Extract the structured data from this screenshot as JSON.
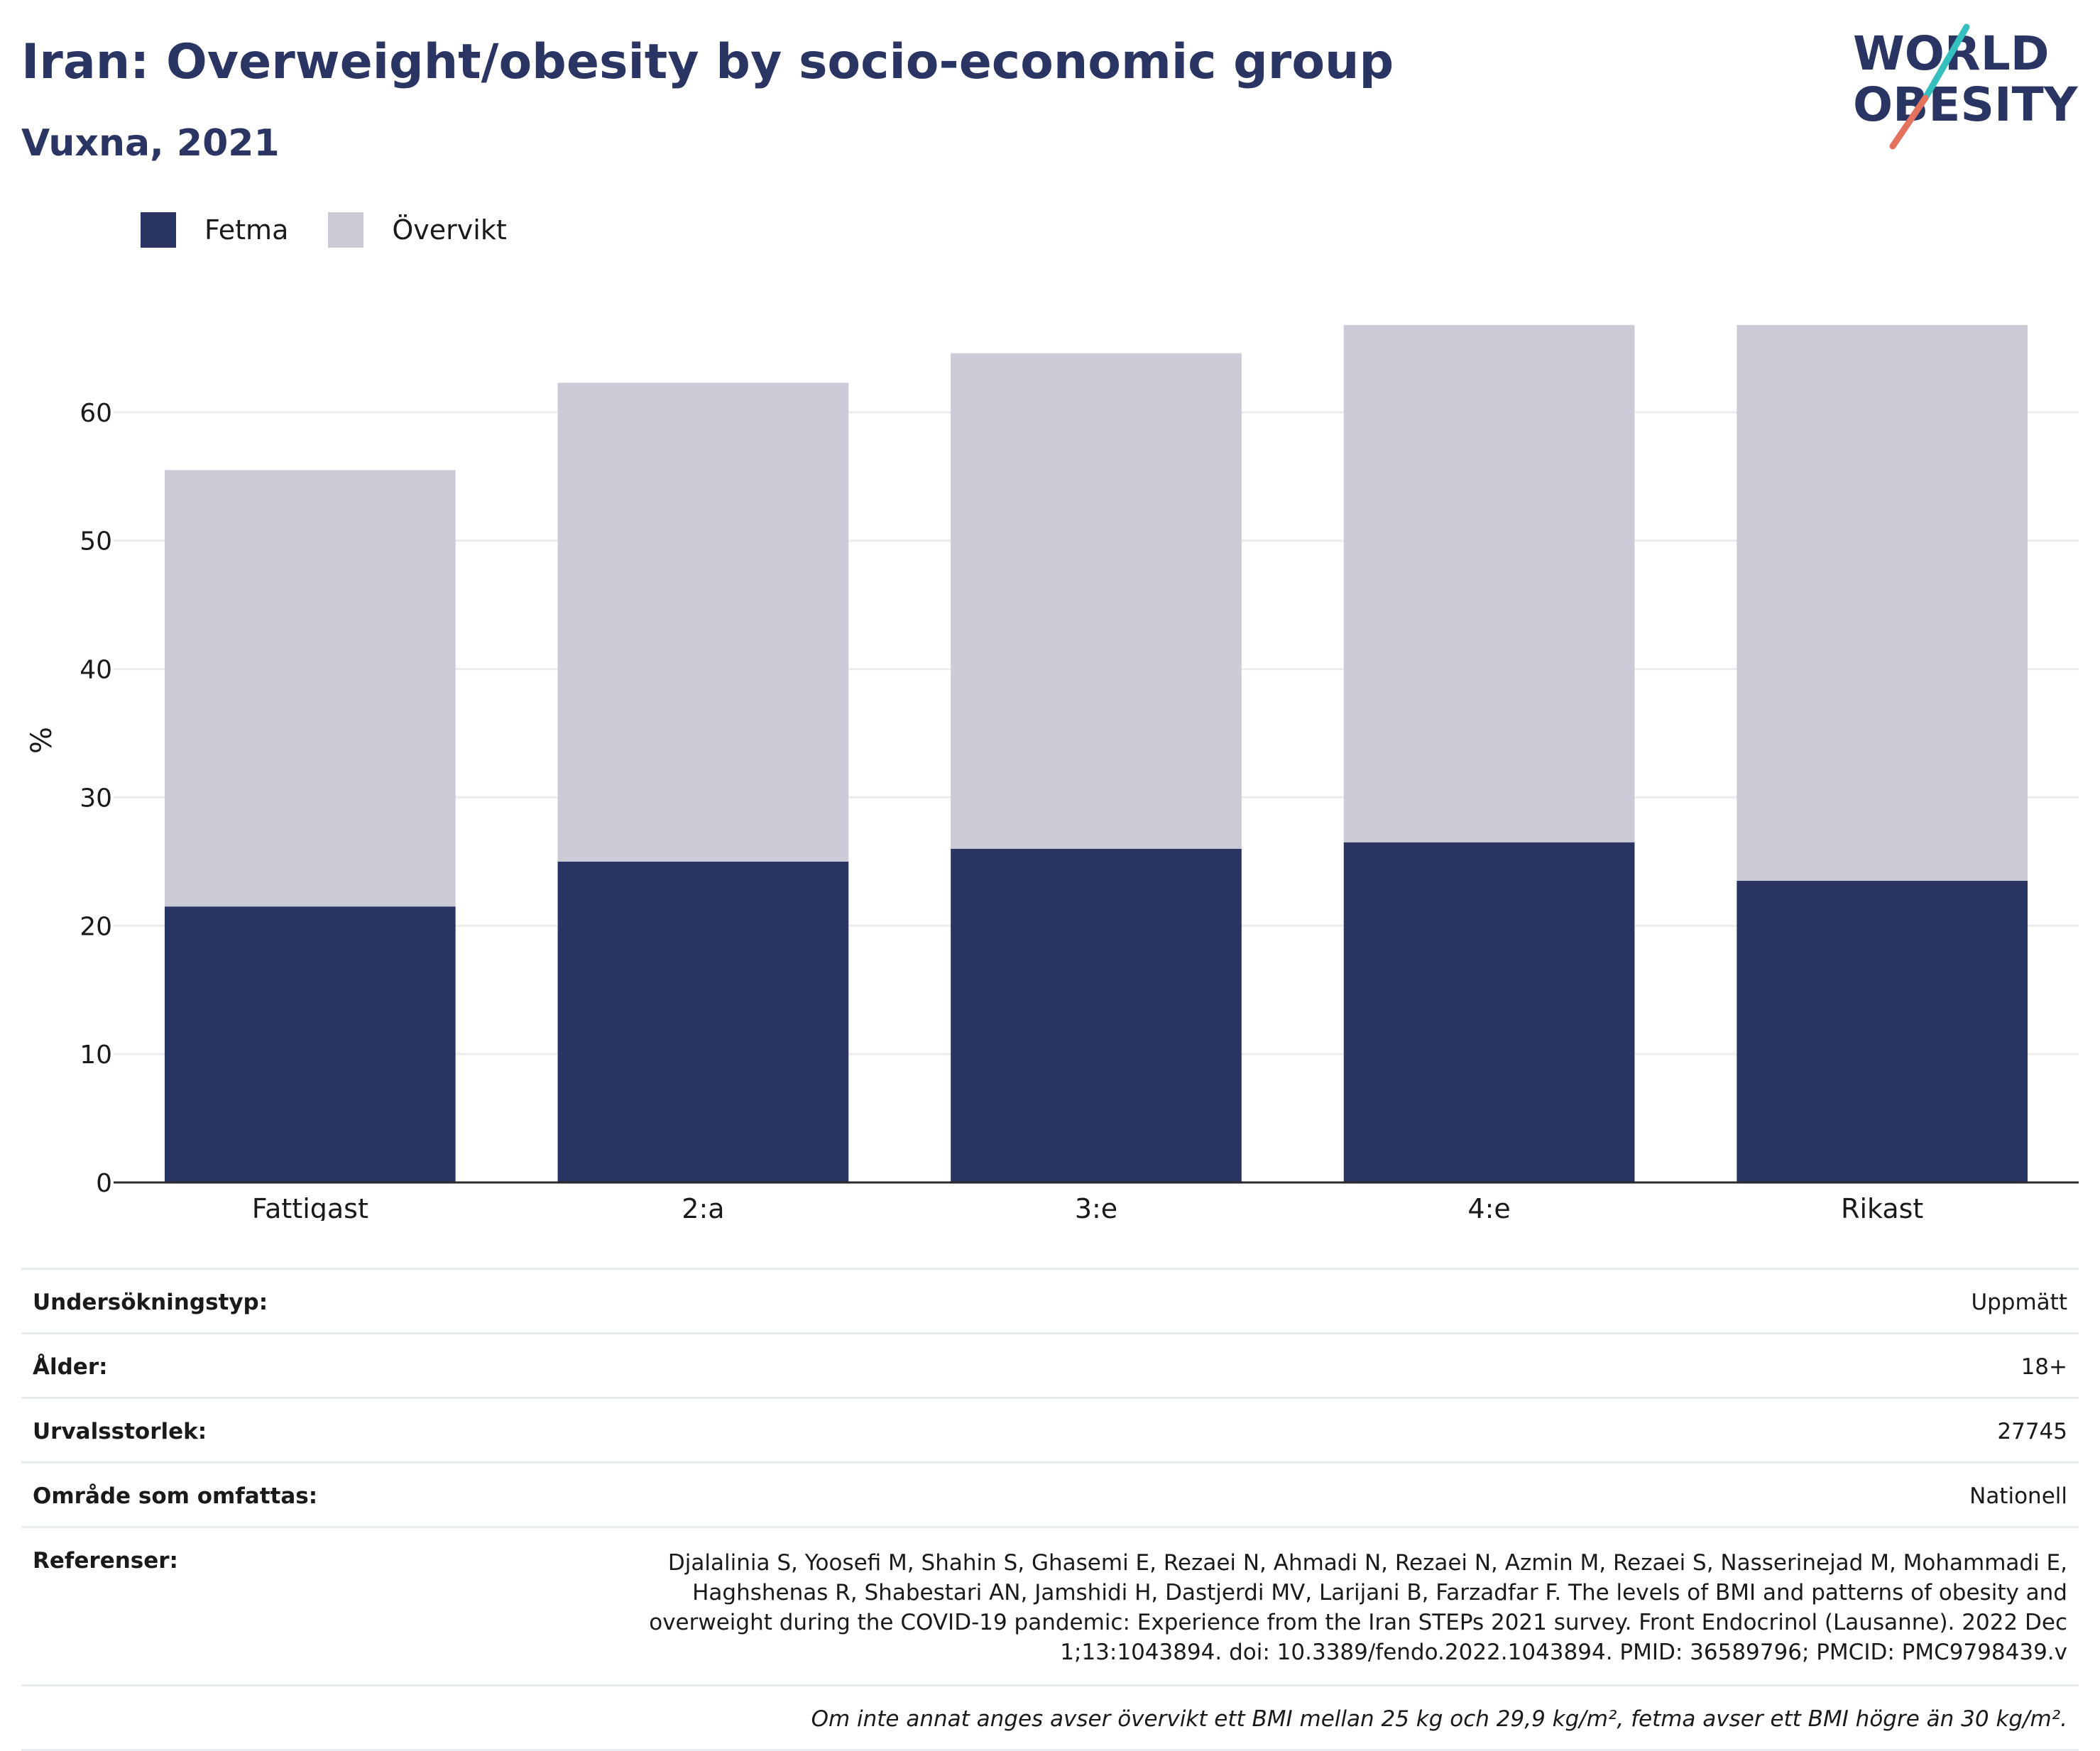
{
  "header": {
    "title": "Iran: Overweight/obesity by socio-economic group",
    "subtitle": "Vuxna, 2021",
    "logo_text": [
      "WORLD",
      "OBESITY"
    ]
  },
  "colors": {
    "title": "#2a3563",
    "obesity": "#2a3563",
    "overweight": "#cacbd7",
    "logo_teal": "#36bfbf",
    "logo_coral": "#e5715f"
  },
  "legend": [
    {
      "label": "Fetma",
      "color": "#2a3563"
    },
    {
      "label": "Övervikt",
      "color": "#cacbd7"
    }
  ],
  "chart_data": {
    "type": "bar",
    "stacked": true,
    "categories": [
      "Fattigast",
      "2:a",
      "3:e",
      "4:e",
      "Rikast"
    ],
    "series": [
      {
        "name": "Fetma",
        "values": [
          21.5,
          25.0,
          26.0,
          26.5,
          23.5
        ]
      },
      {
        "name": "Övervikt",
        "values": [
          34.0,
          37.3,
          38.6,
          40.3,
          43.3
        ]
      }
    ],
    "ylabel": "%",
    "ylim": [
      0,
      70
    ],
    "yticks": [
      0,
      10,
      20,
      30,
      40,
      50,
      60
    ],
    "grid": true,
    "legend_position": "top-left"
  },
  "info": [
    {
      "label": "Undersökningstyp:",
      "value": "Uppmätt"
    },
    {
      "label": "Ålder:",
      "value": "18+"
    },
    {
      "label": "Urvalsstorlek:",
      "value": "27745"
    },
    {
      "label": "Område som omfattas:",
      "value": "Nationell"
    },
    {
      "label": "Referenser:",
      "value": "Djalalinia S, Yoosefi M, Shahin S, Ghasemi E, Rezaei N, Ahmadi N, Rezaei N, Azmin M, Rezaei S, Nasserinejad M, Mohammadi E, Haghshenas R, Shabestari AN, Jamshidi H, Dastjerdi MV, Larijani B, Farzadfar F. The levels of BMI and patterns of obesity and overweight during the COVID-19 pandemic: Experience from the Iran STEPs 2021 survey. Front Endocrinol (Lausanne). 2022 Dec 1;13:1043894. doi: 10.3389/fendo.2022.1043894. PMID: 36589796; PMCID: PMC9798439.v"
    }
  ],
  "footnote": "Om inte annat anges avser övervikt ett BMI mellan 25 kg och 29,9 kg/m², fetma avser ett BMI högre än 30 kg/m²."
}
